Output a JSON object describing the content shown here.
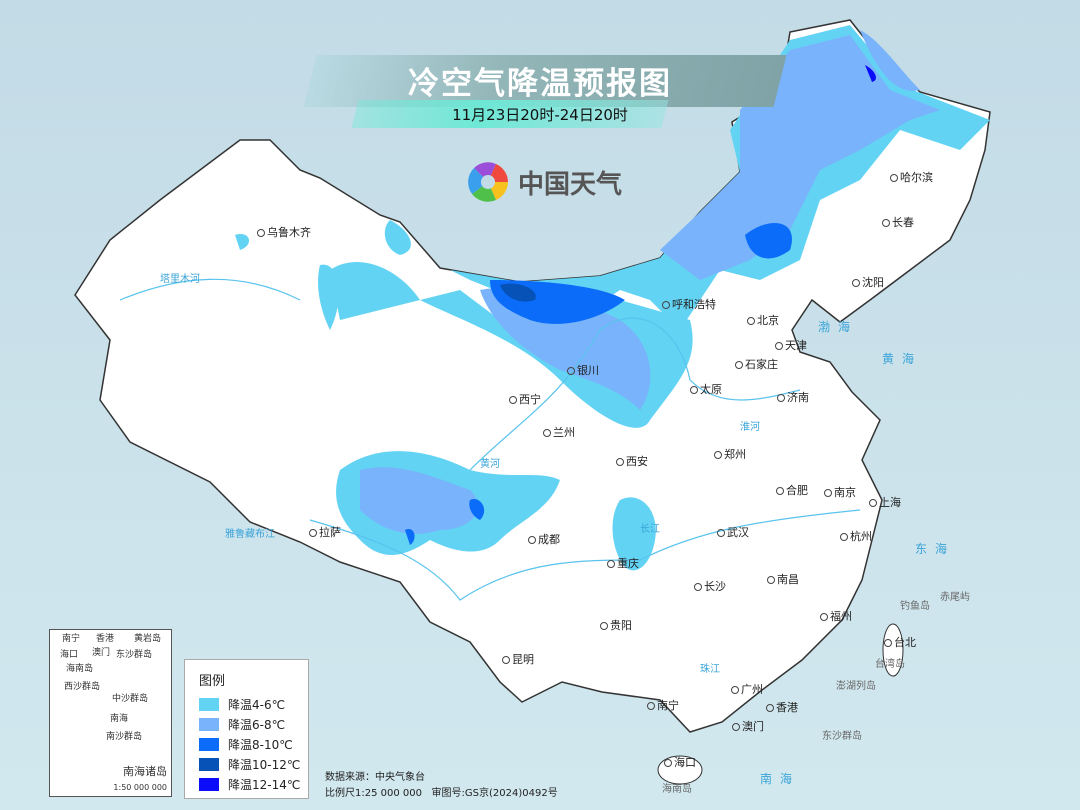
{
  "header": {
    "title": "冷空气降温预报图",
    "subtitle": "11月23日20时-24日20时",
    "brand": "中国天气"
  },
  "legend": {
    "title": "图例",
    "items": [
      {
        "label": "降温4-6℃",
        "color": "#63d3f3"
      },
      {
        "label": "降温6-8℃",
        "color": "#78b3fb"
      },
      {
        "label": "降温8-10℃",
        "color": "#0a6cf9"
      },
      {
        "label": "降温10-12℃",
        "color": "#0752b7"
      },
      {
        "label": "降温12-14℃",
        "color": "#0b0cf9"
      }
    ]
  },
  "cities": [
    "乌鲁木齐",
    "哈尔滨",
    "长春",
    "沈阳",
    "呼和浩特",
    "北京",
    "天津",
    "石家庄",
    "太原",
    "济南",
    "银川",
    "西宁",
    "兰州",
    "西安",
    "郑州",
    "合肥",
    "南京",
    "上海",
    "武汉",
    "杭州",
    "拉萨",
    "成都",
    "重庆",
    "长沙",
    "南昌",
    "福州",
    "台北",
    "贵阳",
    "昆明",
    "南宁",
    "广州",
    "香港",
    "澳门",
    "海口"
  ],
  "seas": [
    "渤海",
    "黄海",
    "东海",
    "南海"
  ],
  "islands": [
    "台湾岛",
    "钓鱼岛",
    "赤尾屿",
    "澎湖列岛",
    "东沙群岛",
    "海南岛"
  ],
  "rivers": [
    "塔里木河",
    "雅鲁藏布江",
    "黄河",
    "长江",
    "淮河",
    "珠江"
  ],
  "inset": {
    "labels": [
      "南宁",
      "香港",
      "澳门",
      "海口",
      "海南岛",
      "东沙群岛",
      "西沙群岛",
      "中沙群岛",
      "南海",
      "南沙群岛",
      "黄岩岛"
    ],
    "title": "南海诸岛",
    "scale": "1:50 000 000"
  },
  "footer": {
    "source": "数据来源：中央气象台",
    "scale": "比例尺1:25 000 000",
    "approval": "审图号:GS京(2024)0492号"
  }
}
